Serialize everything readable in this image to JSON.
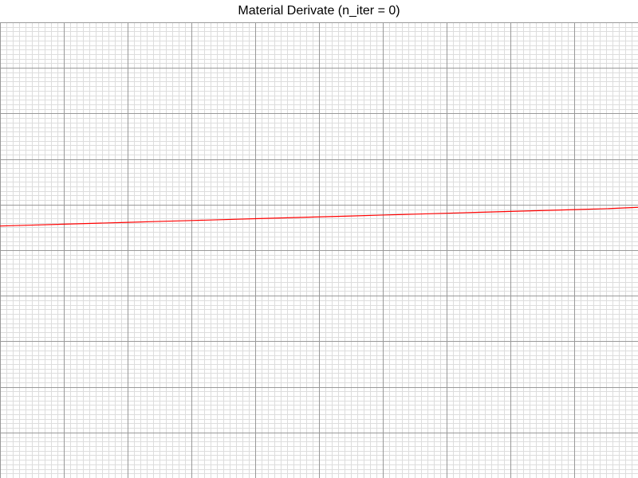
{
  "chart_data": {
    "type": "line",
    "title": "Material Derivate (n_iter = 0)",
    "xlabel": "",
    "ylabel": "",
    "xlim": [
      0,
      10
    ],
    "ylim": [
      0,
      10
    ],
    "grid": true,
    "grid_minor": true,
    "series": [
      {
        "color": "#ff0000",
        "x": [
          0,
          0.5,
          1,
          1.5,
          2,
          2.5,
          3,
          3.5,
          4,
          4.5,
          5,
          5.5,
          6,
          6.5,
          7,
          7.5,
          8,
          8.5,
          9,
          9.5,
          10
        ],
        "y": [
          5.53,
          5.55,
          5.57,
          5.59,
          5.61,
          5.63,
          5.65,
          5.67,
          5.69,
          5.71,
          5.73,
          5.75,
          5.77,
          5.79,
          5.81,
          5.83,
          5.85,
          5.87,
          5.89,
          5.91,
          5.94
        ]
      }
    ]
  },
  "colors": {
    "background": "#ffffff",
    "major_grid": "#999999",
    "minor_grid": "#dddddd",
    "series": "#ff0000"
  }
}
